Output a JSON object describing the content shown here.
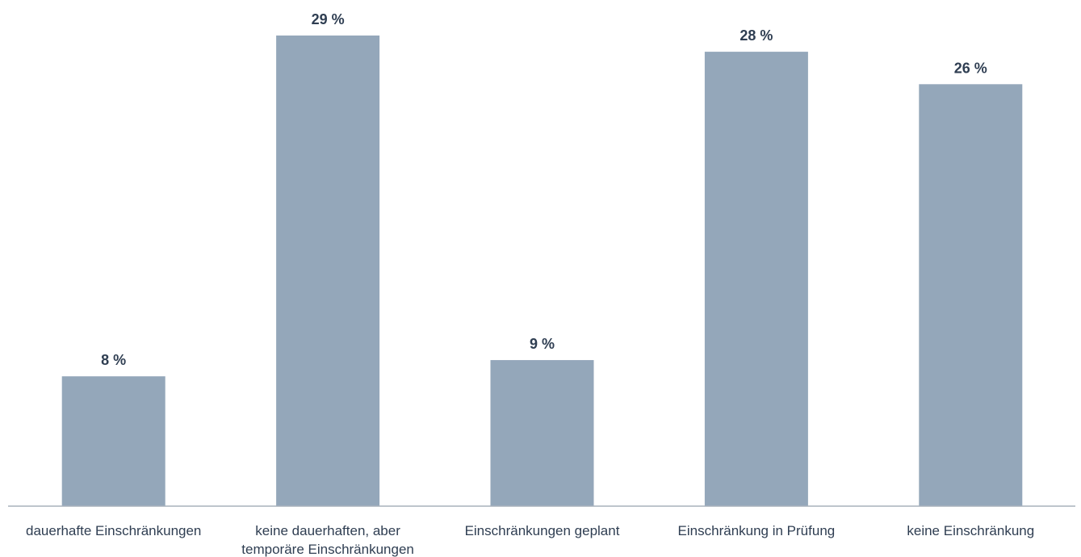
{
  "chart_data": {
    "type": "bar",
    "categories": [
      [
        "dauerhafte Einschränkungen"
      ],
      [
        "keine dauerhaften, aber",
        "temporäre Einschränkungen"
      ],
      [
        "Einschränkungen geplant"
      ],
      [
        "Einschränkung in Prüfung"
      ],
      [
        "keine Einschränkung"
      ]
    ],
    "values": [
      8,
      29,
      9,
      28,
      26
    ],
    "value_labels": [
      "8 %",
      "29 %",
      "9 %",
      "28 %",
      "26 %"
    ],
    "ylim": [
      0,
      30
    ],
    "grid": false,
    "colors": {
      "bar": "#94a7ba",
      "text": "#2f3e52",
      "axis": "#a8b2bc"
    }
  }
}
